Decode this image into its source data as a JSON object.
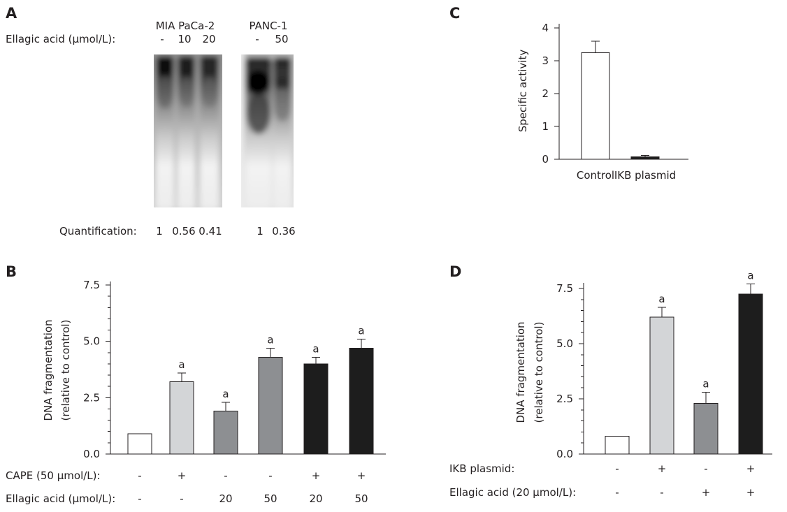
{
  "panel_a": {
    "label": "A",
    "cell_lines": [
      "MIA PaCa-2",
      "PANC-1"
    ],
    "treatment_label": "Ellagic acid (μmol/L):",
    "doses": [
      "-",
      "10",
      "20",
      "-",
      "50"
    ],
    "quantification_label": "Quantification:",
    "quantification": [
      "1",
      "0.56",
      "0.41",
      "1",
      "0.36"
    ]
  },
  "chart_data": [
    {
      "panel": "B",
      "type": "bar",
      "ylabel_lines": [
        "DNA fragmentation",
        "(relative to control)"
      ],
      "ylim": [
        0,
        7.5
      ],
      "yticks": [
        0,
        2.5,
        5,
        7.5
      ],
      "ytick_labels": [
        "0.0",
        "2.5",
        "5.0",
        "7.5"
      ],
      "minor_tick_step": 0.5,
      "grid": false,
      "values": [
        0.9,
        3.2,
        1.9,
        4.3,
        4.0,
        4.7
      ],
      "errors": [
        0,
        0.4,
        0.4,
        0.4,
        0.3,
        0.4
      ],
      "annotations": [
        "",
        "a",
        "a",
        "a",
        "a",
        "a"
      ],
      "bar_colors": [
        "#ffffff",
        "#d3d5d7",
        "#8d8f92",
        "#8d8f92",
        "#1d1d1d",
        "#1d1d1d"
      ],
      "conditions": [
        {
          "label": "CAPE (50 μmol/L):",
          "values": [
            "-",
            "+",
            "-",
            "-",
            "+",
            "+"
          ]
        },
        {
          "label": "Ellagic acid (μmol/L):",
          "values": [
            "-",
            "-",
            "20",
            "50",
            "20",
            "50"
          ]
        }
      ]
    },
    {
      "panel": "C",
      "type": "bar",
      "ylabel_lines": [
        "Specific activity"
      ],
      "ylim": [
        0,
        4
      ],
      "yticks": [
        0,
        1,
        2,
        3,
        4
      ],
      "ytick_labels": [
        "0",
        "1",
        "2",
        "3",
        "4"
      ],
      "grid": false,
      "categories": [
        "Control",
        "IKB plasmid"
      ],
      "values": [
        3.25,
        0.07
      ],
      "errors": [
        0.35,
        0.05
      ],
      "annotations": [
        "",
        ""
      ],
      "bar_colors": [
        "#ffffff",
        "#1d1d1d"
      ]
    },
    {
      "panel": "D",
      "type": "bar",
      "ylabel_lines": [
        "DNA fragmentation",
        "(relative to control)"
      ],
      "ylim": [
        0,
        7.5
      ],
      "yticks": [
        0,
        2.5,
        5,
        7.5
      ],
      "ytick_labels": [
        "0.0",
        "2.5",
        "5.0",
        "7.5"
      ],
      "minor_tick_step": 0.5,
      "grid": false,
      "values": [
        0.8,
        6.2,
        2.3,
        7.25
      ],
      "errors": [
        0,
        0.45,
        0.5,
        0.45
      ],
      "annotations": [
        "",
        "a",
        "a",
        "a"
      ],
      "bar_colors": [
        "#ffffff",
        "#d3d5d7",
        "#8d8f92",
        "#1d1d1d"
      ],
      "conditions": [
        {
          "label": "IKB plasmid:",
          "values": [
            "-",
            "+",
            "-",
            "+"
          ]
        },
        {
          "label": "Ellagic acid (20 μmol/L):",
          "values": [
            "-",
            "-",
            "+",
            "+"
          ]
        }
      ]
    }
  ]
}
